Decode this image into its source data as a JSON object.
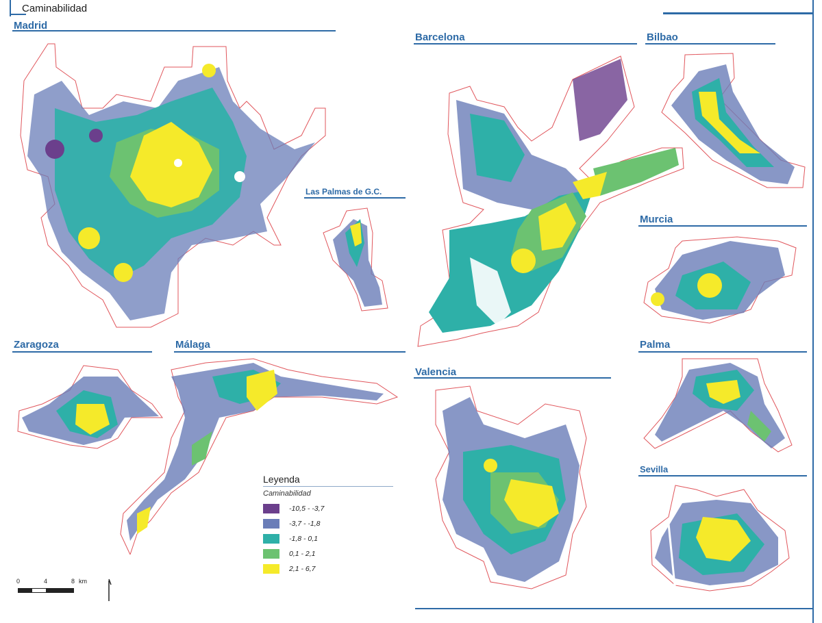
{
  "header": {
    "title": "Caminabilidad"
  },
  "cities": [
    {
      "name": "Madrid"
    },
    {
      "name": "Las Palmas de G.C."
    },
    {
      "name": "Barcelona"
    },
    {
      "name": "Bilbao"
    },
    {
      "name": "Murcia"
    },
    {
      "name": "Zaragoza"
    },
    {
      "name": "Málaga"
    },
    {
      "name": "Valencia"
    },
    {
      "name": "Palma"
    },
    {
      "name": "Sevilla"
    }
  ],
  "legend": {
    "title": "Leyenda",
    "subtitle": "Caminabilidad",
    "classes": [
      {
        "label": "-10,5 - -3,7",
        "color": "#6b3f8c"
      },
      {
        "label": "-3,7 - -1,8",
        "color": "#6a7db8"
      },
      {
        "label": "-1,8 - 0,1",
        "color": "#2eb0a8"
      },
      {
        "label": "0,1 - 2,1",
        "color": "#6cc271"
      },
      {
        "label": "2,1 - 6,7",
        "color": "#f5ea2a"
      }
    ]
  },
  "scale_bar": {
    "ticks": [
      "0",
      "4",
      "8"
    ],
    "unit": "km"
  },
  "colors": {
    "accent": "#2d6aa6",
    "boundary": "#e0555b"
  }
}
